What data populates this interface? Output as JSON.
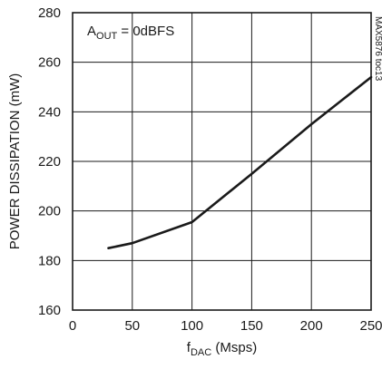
{
  "chart_data": {
    "type": "line",
    "annotation": {
      "main": "A",
      "sub": "OUT",
      "suffix": " = 0dBFS"
    },
    "side_label": "MAX5876 toc13",
    "ylabel": "POWER DISSIPATION (mW)",
    "xlabel": {
      "main": "f",
      "sub": "DAC",
      "suffix": " (Msps)"
    },
    "xlim": [
      0,
      250
    ],
    "ylim": [
      160,
      280
    ],
    "x_ticks": [
      0,
      50,
      100,
      150,
      200,
      250
    ],
    "y_ticks": [
      160,
      180,
      200,
      220,
      240,
      260,
      280
    ],
    "grid": true,
    "series": [
      {
        "x": [
          30,
          50,
          100,
          150,
          200,
          250
        ],
        "y": [
          185,
          187,
          195.5,
          215,
          235,
          254
        ]
      }
    ]
  },
  "colors": {
    "line": "#1a1a1a",
    "grid": "#1a1a1a",
    "background": "#ffffff"
  }
}
